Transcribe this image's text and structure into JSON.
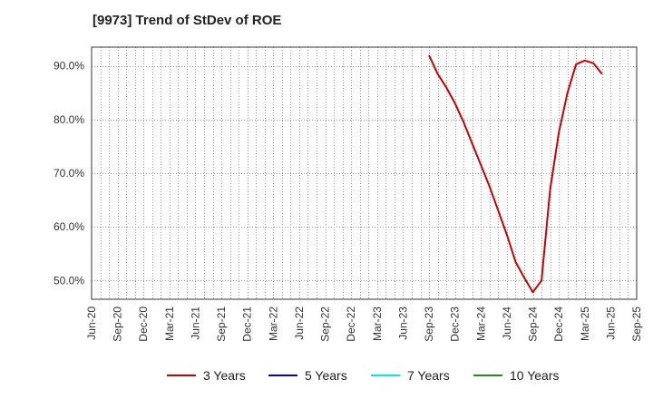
{
  "chart_data": {
    "type": "line",
    "title": "[9973]  Trend of StDev of ROE",
    "xlabel": "",
    "ylabel": "",
    "ylim": [
      46.5,
      93.5
    ],
    "yticks": [
      50.0,
      60.0,
      70.0,
      80.0,
      90.0
    ],
    "ytick_labels": [
      "50.0%",
      "60.0%",
      "70.0%",
      "80.0%",
      "90.0%"
    ],
    "x_categories": [
      "Jun-20",
      "Sep-20",
      "Dec-20",
      "Mar-21",
      "Jun-21",
      "Sep-21",
      "Dec-21",
      "Mar-22",
      "Jun-22",
      "Sep-22",
      "Dec-22",
      "Mar-23",
      "Jun-23",
      "Sep-23",
      "Dec-23",
      "Mar-24",
      "Jun-24",
      "Sep-24",
      "Dec-24",
      "Mar-25",
      "Jun-25",
      "Sep-25"
    ],
    "grid": true,
    "legend_position": "bottom",
    "series": [
      {
        "name": "3 Years",
        "color": "#cc0000",
        "x": [
          39,
          40,
          41,
          42,
          43,
          44,
          45,
          46,
          47,
          48,
          49,
          50,
          51,
          52,
          53,
          54,
          55,
          56,
          57,
          58,
          59,
          60
        ],
        "values": [
          92.0,
          88.5,
          86.0,
          83.0,
          79.5,
          75.5,
          71.5,
          67.5,
          63.0,
          58.5,
          53.5,
          50.5,
          47.8,
          50.0,
          67.0,
          77.5,
          85.0,
          90.3,
          91.0,
          90.5,
          88.5,
          null
        ]
      },
      {
        "name": "5 Years",
        "color": "#0000cc",
        "x": [],
        "values": []
      },
      {
        "name": "7 Years",
        "color": "#00e5ff",
        "x": [],
        "values": []
      },
      {
        "name": "10 Years",
        "color": "#228b22",
        "x": [],
        "values": []
      }
    ]
  }
}
